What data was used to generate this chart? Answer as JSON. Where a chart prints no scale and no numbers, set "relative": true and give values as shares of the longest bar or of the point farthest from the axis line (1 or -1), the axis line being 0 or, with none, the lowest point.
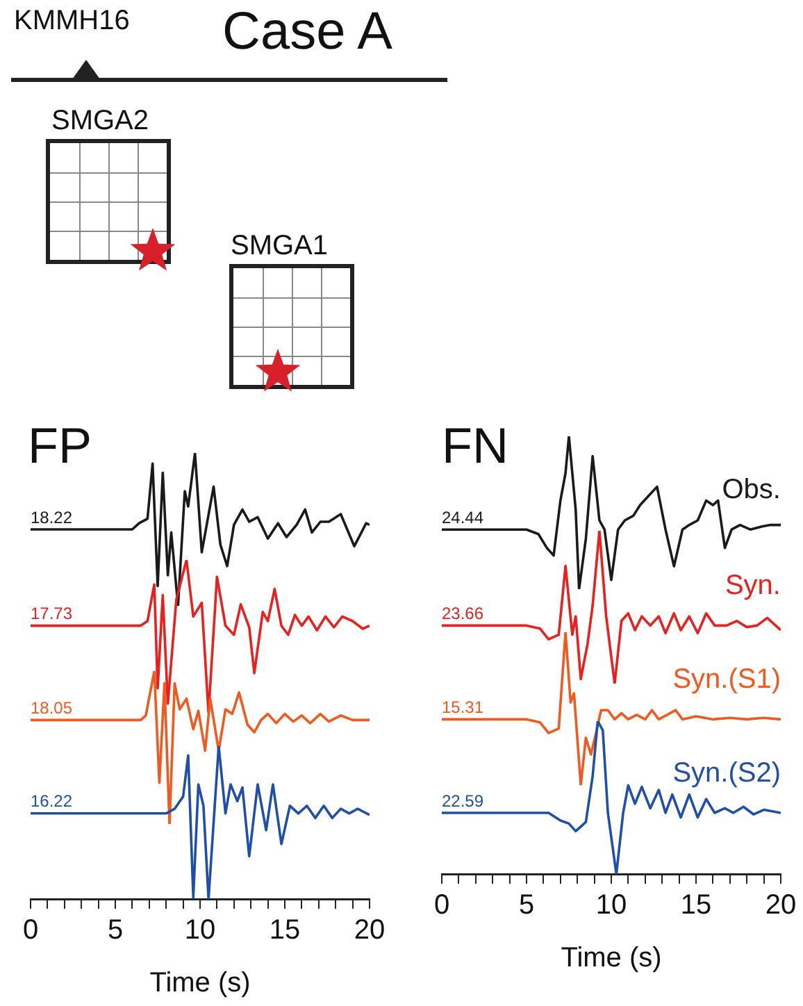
{
  "chart_data": [
    {
      "type": "other",
      "title": "Case A",
      "annotations": [
        "KMMH16",
        "SMGA2",
        "SMGA1"
      ]
    },
    {
      "type": "line",
      "relative": true,
      "title": "FP",
      "annotations": [
        "18.22"
      ],
      "xlim": [
        0,
        20
      ],
      "tick_labels": false,
      "x": [
        0,
        6.0,
        6.4,
        6.9,
        7.2,
        7.5,
        7.8,
        8.1,
        8.3,
        8.7,
        9.1,
        9.3,
        9.7,
        10.1,
        10.8,
        11.2,
        11.6,
        12.0,
        12.5,
        12.9,
        13.4,
        14.0,
        14.6,
        15.1,
        15.7,
        16.2,
        16.6,
        17.1,
        17.6,
        18.3,
        19.1,
        19.8,
        20
      ],
      "series": [
        {
          "color": "#1a1a1a",
          "values": [
            0.5,
            0.5,
            0.54,
            0.57,
            0.93,
            0.13,
            0.87,
            0.2,
            0.48,
            0,
            0.75,
            0.65,
            1,
            0.35,
            0.78,
            0.4,
            0.26,
            0.53,
            0.63,
            0.55,
            0.58,
            0.44,
            0.54,
            0.45,
            0.53,
            0.63,
            0.48,
            0.55,
            0.55,
            0.6,
            0.39,
            0.54,
            0.53
          ]
        }
      ]
    },
    {
      "type": "line",
      "relative": true,
      "annotations": [
        "17.73"
      ],
      "xlim": [
        0,
        20
      ],
      "tick_labels": false,
      "x": [
        0,
        6.5,
        6.9,
        7.3,
        7.5,
        7.8,
        8.1,
        8.6,
        9.2,
        9.6,
        10.1,
        10.5,
        11.0,
        11.5,
        12.0,
        12.4,
        12.9,
        13.2,
        13.7,
        14.0,
        14.4,
        14.8,
        15.2,
        15.6,
        16.0,
        16.4,
        16.9,
        17.4,
        17.9,
        18.4,
        19.0,
        19.6,
        20
      ],
      "series": [
        {
          "color": "#e8201e",
          "values": [
            0.57,
            0.57,
            0.6,
            0.84,
            0.16,
            0.77,
            0.06,
            0.74,
            1,
            0.63,
            0.72,
            0,
            0.89,
            0.57,
            0.51,
            0.71,
            0.56,
            0.26,
            0.66,
            0.6,
            0.81,
            0.57,
            0.51,
            0.64,
            0.57,
            0.63,
            0.54,
            0.63,
            0.56,
            0.63,
            0.6,
            0.55,
            0.57
          ]
        }
      ]
    },
    {
      "type": "line",
      "relative": true,
      "annotations": [
        "18.05"
      ],
      "xlim": [
        0,
        20
      ],
      "tick_labels": false,
      "x": [
        0,
        6.5,
        6.8,
        7.3,
        7.6,
        7.9,
        8.2,
        8.5,
        8.8,
        9.2,
        9.6,
        9.9,
        10.3,
        10.6,
        11.1,
        11.5,
        11.9,
        12.3,
        12.8,
        13.2,
        13.6,
        14.0,
        14.5,
        15.0,
        15.5,
        16.0,
        16.5,
        17.1,
        17.6,
        18.3,
        19.0,
        20
      ],
      "series": [
        {
          "color": "#f05a1e",
          "values": [
            0.68,
            0.68,
            0.71,
            1,
            0.27,
            0.92,
            0,
            0.92,
            0.75,
            0.82,
            0.62,
            0.74,
            0.48,
            0.82,
            0.48,
            0.75,
            0.72,
            0.86,
            0.65,
            0.6,
            0.68,
            0.72,
            0.66,
            0.72,
            0.67,
            0.71,
            0.66,
            0.72,
            0.67,
            0.71,
            0.68,
            0.68
          ]
        }
      ]
    },
    {
      "type": "line",
      "relative": true,
      "xlabel": "Time (s)",
      "annotations": [
        "16.22"
      ],
      "xlim": [
        0,
        20
      ],
      "xticks": [
        0,
        {
          "value": 1,
          "label": null
        },
        {
          "value": 2,
          "label": null
        },
        {
          "value": 3,
          "label": null
        },
        {
          "value": 4,
          "label": null
        },
        5,
        {
          "value": 6,
          "label": null
        },
        {
          "value": 7,
          "label": null
        },
        {
          "value": 8,
          "label": null
        },
        {
          "value": 9,
          "label": null
        },
        10,
        {
          "value": 11,
          "label": null
        },
        {
          "value": 12,
          "label": null
        },
        {
          "value": 13,
          "label": null
        },
        {
          "value": 14,
          "label": null
        },
        15,
        {
          "value": 16,
          "label": null
        },
        {
          "value": 17,
          "label": null
        },
        {
          "value": 18,
          "label": null
        },
        {
          "value": 19,
          "label": null
        },
        20
      ],
      "tick_labels": "x",
      "x": [
        0,
        7.0,
        8.0,
        8.5,
        9.0,
        9.3,
        9.6,
        9.9,
        10.2,
        10.5,
        11.1,
        11.5,
        11.8,
        12.2,
        12.5,
        12.9,
        13.4,
        13.9,
        14.3,
        14.8,
        15.3,
        15.8,
        16.3,
        16.8,
        17.3,
        17.8,
        18.3,
        18.8,
        19.3,
        20
      ],
      "series": [
        {
          "color": "#1f4fa8",
          "values": [
            0.56,
            0.56,
            0.56,
            0.59,
            0.67,
            0.94,
            0.01,
            0.75,
            0.61,
            0,
            1,
            0.56,
            0.75,
            0.64,
            0.73,
            0.28,
            0.75,
            0.45,
            0.75,
            0.36,
            0.61,
            0.56,
            0.61,
            0.53,
            0.61,
            0.53,
            0.59,
            0.56,
            0.59,
            0.55
          ]
        }
      ]
    },
    {
      "type": "line",
      "relative": true,
      "title": "FN",
      "annotations": [
        "24.44"
      ],
      "xlim": [
        0,
        20
      ],
      "tick_labels": false,
      "x": [
        0,
        5.0,
        5.7,
        6.2,
        6.6,
        7.0,
        7.3,
        7.5,
        7.9,
        8.1,
        8.5,
        8.9,
        9.3,
        9.6,
        10.0,
        10.4,
        10.8,
        11.3,
        11.7,
        12.2,
        12.7,
        13.2,
        13.7,
        14.2,
        14.6,
        15.1,
        15.6,
        16.0,
        16.3,
        16.7,
        17.1,
        17.6,
        18.2,
        18.9,
        19.4,
        20
      ],
      "series": [
        {
          "name": "Obs.",
          "color": "#1a1a1a",
          "values": [
            0.39,
            0.39,
            0.36,
            0.27,
            0.22,
            0.58,
            0.76,
            1,
            0.52,
            0,
            0.33,
            0.87,
            0.45,
            0.39,
            0.06,
            0.39,
            0.45,
            0.48,
            0.55,
            0.61,
            0.67,
            0.39,
            0.15,
            0.39,
            0.42,
            0.45,
            0.58,
            0.55,
            0.58,
            0.27,
            0.39,
            0.42,
            0.39,
            0.41,
            0.42,
            0.42
          ]
        }
      ]
    },
    {
      "type": "line",
      "relative": true,
      "annotations": [
        "23.66"
      ],
      "xlim": [
        0,
        20
      ],
      "tick_labels": false,
      "x": [
        0,
        5.0,
        5.8,
        6.3,
        6.9,
        7.3,
        7.7,
        7.9,
        8.2,
        8.6,
        8.9,
        9.3,
        9.7,
        10.2,
        10.6,
        11.0,
        11.4,
        11.8,
        12.3,
        12.8,
        13.2,
        13.7,
        14.1,
        14.6,
        15.1,
        15.6,
        16.1,
        16.8,
        17.4,
        18.0,
        18.6,
        19.2,
        20
      ],
      "series": [
        {
          "name": "Syn.",
          "color": "#e8201e",
          "values": [
            0.38,
            0.38,
            0.36,
            0.29,
            0.32,
            0.77,
            0.32,
            0.44,
            0.03,
            0.26,
            0.51,
            1,
            0.44,
            0,
            0.41,
            0.46,
            0.35,
            0.44,
            0.38,
            0.44,
            0.33,
            0.46,
            0.35,
            0.44,
            0.33,
            0.46,
            0.38,
            0.38,
            0.41,
            0.37,
            0.38,
            0.43,
            0.35
          ]
        }
      ]
    },
    {
      "type": "line",
      "relative": true,
      "annotations": [
        "15.31"
      ],
      "xlim": [
        0,
        20
      ],
      "tick_labels": false,
      "x": [
        0,
        5.0,
        5.8,
        6.3,
        6.9,
        7.3,
        7.6,
        7.8,
        8.2,
        8.5,
        8.8,
        9.1,
        9.4,
        9.8,
        10.2,
        10.6,
        11.0,
        11.5,
        12.0,
        12.4,
        12.8,
        13.3,
        13.8,
        14.2,
        15.0,
        16.0,
        17.0,
        18.0,
        19.0,
        20
      ],
      "series": [
        {
          "name": "Syn.(S1)",
          "color": "#f05a1e",
          "values": [
            0.43,
            0.43,
            0.41,
            0.34,
            0.37,
            1,
            0.54,
            0.6,
            0,
            0.31,
            0.2,
            0.34,
            0.49,
            0.49,
            0.43,
            0.47,
            0.43,
            0.46,
            0.43,
            0.49,
            0.43,
            0.46,
            0.49,
            0.43,
            0.45,
            0.43,
            0.44,
            0.43,
            0.44,
            0.43
          ]
        }
      ]
    },
    {
      "type": "line",
      "relative": true,
      "xlabel": "Time (s)",
      "annotations": [
        "22.59"
      ],
      "xlim": [
        0,
        20
      ],
      "xticks": [
        0,
        {
          "value": 1,
          "label": null
        },
        {
          "value": 2,
          "label": null
        },
        {
          "value": 3,
          "label": null
        },
        {
          "value": 4,
          "label": null
        },
        5,
        {
          "value": 6,
          "label": null
        },
        {
          "value": 7,
          "label": null
        },
        {
          "value": 8,
          "label": null
        },
        {
          "value": 9,
          "label": null
        },
        10,
        {
          "value": 11,
          "label": null
        },
        {
          "value": 12,
          "label": null
        },
        {
          "value": 13,
          "label": null
        },
        {
          "value": 14,
          "label": null
        },
        15,
        {
          "value": 16,
          "label": null
        },
        {
          "value": 17,
          "label": null
        },
        {
          "value": 18,
          "label": null
        },
        {
          "value": 19,
          "label": null
        },
        20
      ],
      "tick_labels": "x",
      "x": [
        0,
        5.0,
        6.3,
        7.0,
        7.5,
        7.9,
        8.2,
        8.5,
        8.9,
        9.2,
        9.5,
        9.8,
        10.3,
        10.7,
        11.0,
        11.4,
        11.8,
        12.3,
        12.8,
        13.2,
        13.6,
        14.1,
        14.6,
        15.1,
        15.6,
        16.1,
        16.7,
        17.2,
        17.8,
        18.4,
        19.0,
        20
      ],
      "series": [
        {
          "name": "Syn.(S2)",
          "color": "#1f4fa8",
          "values": [
            0.4,
            0.4,
            0.4,
            0.35,
            0.33,
            0.28,
            0.31,
            0.34,
            0.64,
            1,
            0.94,
            0.4,
            0,
            0.4,
            0.58,
            0.46,
            0.57,
            0.43,
            0.55,
            0.4,
            0.52,
            0.37,
            0.52,
            0.37,
            0.49,
            0.4,
            0.43,
            0.4,
            0.44,
            0.39,
            0.42,
            0.4
          ]
        }
      ]
    }
  ]
}
